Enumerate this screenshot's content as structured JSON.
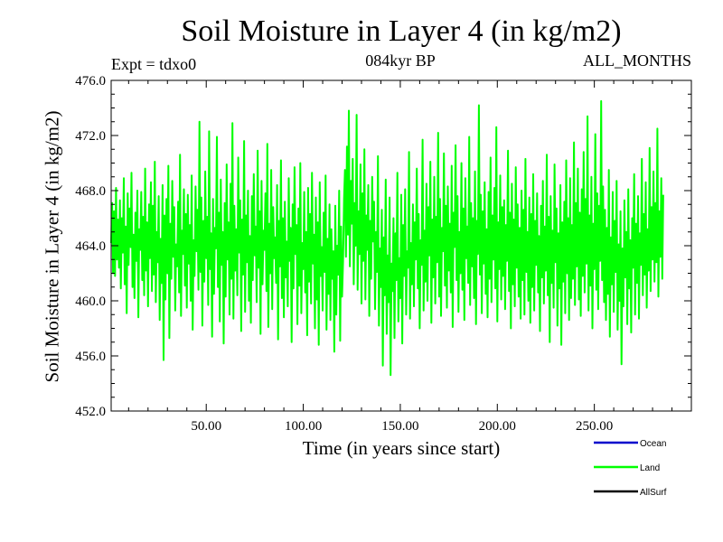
{
  "chart_data": {
    "type": "line",
    "title": "Soil Moisture in Layer 4 (in kg/m2)",
    "experiment_label": "Expt = tdxo0",
    "subtitle": "084kyr BP",
    "period_label": "ALL_MONTHS",
    "xlabel": "Time (in years since start)",
    "ylabel": "Soil Moisture in Layer 4 (in kg/m2)",
    "xlim": [
      1,
      300
    ],
    "ylim": [
      452,
      476
    ],
    "x_ticks": [
      50,
      100,
      150,
      200,
      250
    ],
    "x_tick_labels": [
      "50.00",
      "100.00",
      "150.00",
      "200.00",
      "250.00"
    ],
    "y_ticks": [
      452,
      456,
      460,
      464,
      468,
      472,
      476
    ],
    "y_tick_labels": [
      "452.0",
      "456.0",
      "460.0",
      "464.0",
      "468.0",
      "472.0",
      "476.0"
    ],
    "grid": false,
    "legend_position": "bottom-right",
    "series": [
      {
        "name": "Ocean",
        "color": "#0000cc",
        "values": []
      },
      {
        "name": "Land",
        "color": "#00ff00",
        "x_start": 1,
        "x_step": 0.5,
        "values": [
          464.2,
          467.1,
          462.0,
          466.5,
          461.8,
          468.2,
          463.0,
          465.9,
          462.4,
          467.3,
          460.9,
          466.0,
          463.5,
          468.9,
          461.2,
          465.4,
          459.1,
          467.8,
          462.6,
          466.7,
          463.9,
          469.3,
          461.0,
          464.8,
          460.2,
          466.4,
          462.9,
          468.0,
          458.8,
          465.2,
          463.7,
          467.9,
          461.5,
          466.1,
          460.4,
          469.6,
          462.2,
          465.7,
          459.6,
          467.0,
          463.1,
          468.6,
          460.7,
          466.9,
          461.9,
          470.1,
          459.9,
          465.0,
          462.8,
          467.6,
          458.6,
          464.5,
          461.3,
          468.4,
          455.7,
          466.2,
          460.1,
          467.4,
          462.0,
          469.8,
          457.3,
          465.6,
          461.6,
          468.7,
          463.2,
          466.8,
          459.3,
          464.1,
          462.5,
          467.2,
          460.6,
          470.6,
          458.9,
          465.1,
          463.4,
          468.1,
          461.1,
          466.3,
          459.5,
          467.7,
          462.7,
          465.5,
          460.0,
          469.1,
          457.9,
          464.4,
          461.8,
          468.3,
          463.6,
          466.6,
          460.8,
          473.0,
          462.1,
          467.5,
          458.2,
          465.8,
          461.4,
          469.4,
          463.1,
          466.1,
          459.7,
          472.3,
          462.3,
          464.9,
          457.4,
          467.4,
          460.5,
          465.3,
          463.8,
          471.9,
          461.0,
          466.4,
          458.5,
          468.8,
          462.6,
          465.0,
          456.9,
          467.1,
          460.3,
          469.9,
          463.0,
          465.7,
          459.0,
          468.5,
          461.6,
          472.9,
          458.7,
          466.9,
          462.2,
          465.2,
          460.4,
          470.4,
          463.5,
          467.3,
          457.8,
          465.9,
          461.9,
          471.6,
          459.2,
          466.2,
          462.8,
          468.0,
          460.0,
          464.7,
          458.4,
          467.6,
          461.5,
          469.2,
          463.3,
          465.4,
          459.9,
          470.9,
          462.4,
          466.5,
          457.6,
          468.7,
          461.2,
          465.1,
          463.7,
          467.8,
          460.7,
          471.4,
          458.1,
          465.6,
          462.0,
          469.5,
          459.4,
          466.8,
          463.1,
          464.6,
          461.3,
          468.4,
          457.2,
          465.8,
          462.5,
          470.2,
          460.2,
          466.0,
          458.8,
          467.2,
          461.7,
          464.3,
          459.6,
          468.9,
          462.9,
          465.3,
          457.0,
          467.0,
          460.9,
          469.7,
          463.4,
          465.5,
          458.3,
          466.7,
          461.1,
          470.0,
          459.1,
          464.2,
          462.3,
          467.9,
          460.6,
          465.0,
          457.5,
          468.2,
          461.4,
          466.3,
          459.8,
          469.3,
          462.7,
          464.8,
          458.0,
          467.5,
          460.1,
          465.7,
          456.8,
          468.6,
          461.8,
          463.9,
          459.3,
          466.4,
          462.1,
          469.1,
          457.9,
          464.5,
          460.5,
          467.0,
          458.6,
          465.2,
          461.6,
          463.6,
          456.3,
          466.9,
          459.0,
          464.0,
          461.9,
          468.0,
          457.1,
          465.4,
          460.3,
          462.9,
          467.4,
          469.5,
          463.2,
          471.2,
          464.8,
          473.8,
          462.5,
          468.7,
          465.6,
          470.3,
          461.2,
          467.1,
          464.0,
          473.5,
          460.8,
          466.5,
          463.4,
          469.9,
          459.8,
          467.8,
          462.9,
          471.0,
          460.1,
          466.2,
          463.7,
          468.4,
          458.9,
          465.8,
          461.6,
          469.0,
          464.3,
          467.2,
          459.4,
          465.0,
          462.1,
          470.5,
          458.2,
          463.8,
          461.0,
          466.6,
          455.3,
          464.6,
          460.4,
          468.8,
          457.6,
          463.3,
          459.9,
          467.5,
          454.6,
          462.7,
          460.7,
          466.0,
          457.3,
          464.9,
          461.5,
          469.3,
          458.5,
          463.1,
          460.2,
          467.7,
          456.9,
          465.5,
          461.8,
          468.1,
          459.0,
          463.6,
          462.4,
          470.8,
          458.7,
          464.2,
          461.2,
          467.0,
          459.6,
          465.7,
          463.0,
          469.6,
          460.9,
          466.3,
          458.0,
          464.4,
          462.6,
          471.7,
          459.3,
          465.1,
          461.4,
          468.5,
          460.0,
          466.8,
          463.3,
          470.1,
          458.4,
          465.9,
          461.7,
          469.0,
          459.8,
          466.1,
          462.8,
          472.2,
          460.3,
          467.4,
          458.9,
          465.3,
          463.6,
          470.7,
          461.1,
          466.9,
          459.5,
          468.3,
          462.2,
          465.6,
          460.6,
          469.8,
          458.1,
          466.4,
          463.9,
          471.3,
          461.5,
          467.6,
          459.2,
          465.0,
          462.0,
          470.0,
          460.8,
          466.7,
          458.6,
          468.9,
          463.1,
          465.4,
          461.3,
          471.9,
          459.7,
          467.1,
          462.5,
          466.0,
          460.2,
          469.4,
          458.3,
          465.8,
          463.4,
          474.2,
          461.9,
          467.7,
          459.1,
          466.5,
          462.7,
          468.6,
          460.5,
          465.2,
          458.8,
          467.9,
          461.6,
          470.4,
          459.9,
          466.2,
          463.0,
          468.2,
          460.9,
          472.6,
          458.5,
          465.7,
          462.3,
          469.1,
          460.1,
          466.8,
          461.8,
          467.3,
          459.4,
          465.5,
          462.9,
          470.9,
          460.7,
          466.4,
          458.0,
          468.5,
          461.2,
          465.9,
          459.6,
          469.7,
          462.4,
          467.0,
          460.3,
          465.3,
          458.7,
          468.0,
          461.5,
          466.6,
          459.0,
          470.3,
          462.1,
          465.0,
          460.0,
          467.5,
          458.4,
          466.3,
          461.0,
          469.2,
          459.3,
          465.8,
          462.6,
          467.8,
          460.6,
          464.7,
          457.8,
          466.9,
          461.7,
          468.7,
          459.8,
          465.4,
          462.2,
          470.6,
          460.4,
          466.1,
          457.0,
          467.6,
          461.3,
          465.1,
          459.5,
          469.9,
          462.8,
          466.7,
          458.2,
          464.9,
          460.9,
          468.4,
          456.8,
          465.7,
          461.4,
          467.2,
          459.1,
          470.2,
          462.0,
          466.0,
          458.6,
          468.9,
          460.2,
          465.5,
          461.6,
          471.5,
          459.7,
          467.1,
          462.5,
          469.6,
          460.1,
          466.4,
          458.9,
          468.1,
          461.8,
          470.8,
          460.6,
          467.4,
          462.7,
          473.4,
          459.3,
          466.2,
          461.1,
          469.0,
          458.0,
          465.6,
          462.3,
          472.1,
          460.8,
          467.8,
          459.4,
          466.9,
          462.9,
          474.5,
          461.5,
          468.3,
          459.9,
          466.6,
          458.6,
          465.3,
          460.5,
          469.5,
          457.4,
          464.6,
          461.2,
          467.9,
          459.2,
          465.8,
          462.1,
          468.7,
          457.9,
          464.1,
          460.0,
          466.5,
          455.4,
          463.8,
          459.6,
          467.3,
          461.7,
          465.0,
          458.3,
          468.1,
          460.9,
          464.4,
          457.7,
          466.0,
          462.4,
          469.2,
          459.0,
          465.6,
          461.3,
          467.6,
          458.7,
          464.9,
          462.6,
          470.3,
          460.4,
          466.3,
          461.9,
          468.6,
          459.5,
          465.2,
          462.2,
          471.1,
          460.7,
          466.8,
          463.0,
          469.4,
          461.4,
          467.1,
          462.8,
          472.5,
          460.3,
          466.5,
          463.2,
          468.9,
          461.6,
          467.7
        ]
      },
      {
        "name": "AllSurf",
        "color": "#000000",
        "values": []
      }
    ]
  }
}
